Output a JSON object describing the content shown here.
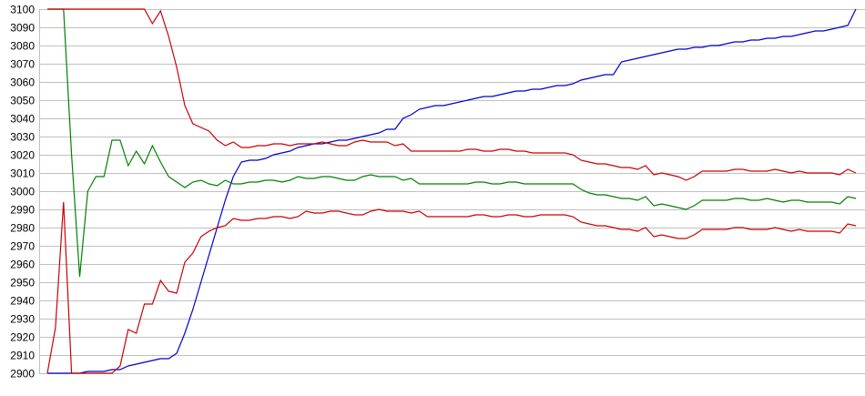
{
  "chart_data": {
    "type": "line",
    "title": "",
    "xlabel": "",
    "ylabel": "",
    "ylim": [
      2900,
      3100
    ],
    "yticks": [
      "3100",
      "3090",
      "3080",
      "3070",
      "3060",
      "3050",
      "3040",
      "3030",
      "3020",
      "3010",
      "3000",
      "2990",
      "2980",
      "2970",
      "2960",
      "2950",
      "2940",
      "2930",
      "2920",
      "2910",
      "2900"
    ],
    "grid": true,
    "legend": "none",
    "series": [
      {
        "color": "#0000cc",
        "values": [
          2900,
          2900,
          2900,
          2900,
          2900,
          2901,
          2901,
          2901,
          2902,
          2902,
          2904,
          2905,
          2906,
          2907,
          2908,
          2908,
          2911,
          2922,
          2935,
          2950,
          2965,
          2980,
          2995,
          3008,
          3016,
          3017,
          3017,
          3018,
          3020,
          3021,
          3022,
          3024,
          3025,
          3026,
          3026,
          3027,
          3028,
          3028,
          3029,
          3030,
          3031,
          3032,
          3034,
          3034,
          3040,
          3042,
          3045,
          3046,
          3047,
          3047,
          3048,
          3049,
          3050,
          3051,
          3052,
          3052,
          3053,
          3054,
          3055,
          3055,
          3056,
          3056,
          3057,
          3058,
          3058,
          3059,
          3061,
          3062,
          3063,
          3064,
          3064,
          3071,
          3072,
          3073,
          3074,
          3075,
          3076,
          3077,
          3078,
          3078,
          3079,
          3079,
          3080,
          3080,
          3081,
          3082,
          3082,
          3083,
          3083,
          3084,
          3084,
          3085,
          3085,
          3086,
          3087,
          3088,
          3088,
          3089,
          3090,
          3091,
          3100
        ]
      },
      {
        "color": "#008000",
        "values": [
          3100,
          3100,
          3100,
          3020,
          2953,
          3000,
          3008,
          3008,
          3028,
          3028,
          3014,
          3022,
          3015,
          3025,
          3016,
          3008,
          3005,
          3002,
          3005,
          3006,
          3004,
          3003,
          3006,
          3004,
          3004,
          3005,
          3005,
          3006,
          3006,
          3005,
          3006,
          3008,
          3007,
          3007,
          3008,
          3008,
          3007,
          3006,
          3006,
          3008,
          3009,
          3008,
          3008,
          3008,
          3006,
          3007,
          3004,
          3004,
          3004,
          3004,
          3004,
          3004,
          3004,
          3005,
          3005,
          3004,
          3004,
          3005,
          3005,
          3004,
          3004,
          3004,
          3004,
          3004,
          3004,
          3004,
          3001,
          2999,
          2998,
          2998,
          2997,
          2996,
          2996,
          2995,
          2997,
          2992,
          2993,
          2992,
          2991,
          2990,
          2992,
          2995,
          2995,
          2995,
          2995,
          2996,
          2996,
          2995,
          2995,
          2996,
          2995,
          2994,
          2995,
          2995,
          2994,
          2994,
          2994,
          2994,
          2993,
          2997,
          2996
        ]
      },
      {
        "color": "#cc0000",
        "values": [
          3100,
          3100,
          3100,
          3100,
          3100,
          3100,
          3100,
          3100,
          3100,
          3100,
          3100,
          3100,
          3100,
          3092,
          3099,
          3085,
          3068,
          3047,
          3037,
          3035,
          3033,
          3028,
          3025,
          3027,
          3024,
          3024,
          3025,
          3025,
          3026,
          3026,
          3025,
          3026,
          3026,
          3026,
          3027,
          3026,
          3025,
          3025,
          3027,
          3028,
          3027,
          3027,
          3027,
          3025,
          3026,
          3022,
          3022,
          3022,
          3022,
          3022,
          3022,
          3022,
          3023,
          3023,
          3022,
          3022,
          3023,
          3023,
          3022,
          3022,
          3021,
          3021,
          3021,
          3021,
          3021,
          3020,
          3017,
          3016,
          3015,
          3015,
          3014,
          3013,
          3013,
          3012,
          3014,
          3009,
          3010,
          3009,
          3008,
          3006,
          3008,
          3011,
          3011,
          3011,
          3011,
          3012,
          3012,
          3011,
          3011,
          3011,
          3012,
          3011,
          3010,
          3011,
          3010,
          3010,
          3010,
          3010,
          3009,
          3012,
          3010
        ]
      },
      {
        "color": "#cc0000",
        "values": [
          2900,
          2925,
          2994,
          2900,
          2900,
          2900,
          2900,
          2900,
          2900,
          2904,
          2924,
          2922,
          2938,
          2938,
          2951,
          2945,
          2944,
          2961,
          2966,
          2975,
          2978,
          2980,
          2981,
          2985,
          2984,
          2984,
          2985,
          2985,
          2986,
          2986,
          2985,
          2986,
          2989,
          2988,
          2988,
          2989,
          2989,
          2988,
          2987,
          2987,
          2989,
          2990,
          2989,
          2989,
          2989,
          2988,
          2989,
          2986,
          2986,
          2986,
          2986,
          2986,
          2986,
          2987,
          2987,
          2986,
          2986,
          2987,
          2987,
          2986,
          2986,
          2987,
          2987,
          2987,
          2987,
          2986,
          2983,
          2982,
          2981,
          2981,
          2980,
          2979,
          2979,
          2978,
          2980,
          2975,
          2976,
          2975,
          2974,
          2974,
          2976,
          2979,
          2979,
          2979,
          2979,
          2980,
          2980,
          2979,
          2979,
          2979,
          2980,
          2979,
          2978,
          2979,
          2978,
          2978,
          2978,
          2978,
          2977,
          2982,
          2981
        ]
      }
    ],
    "gridColor": "#c0c0c0"
  }
}
